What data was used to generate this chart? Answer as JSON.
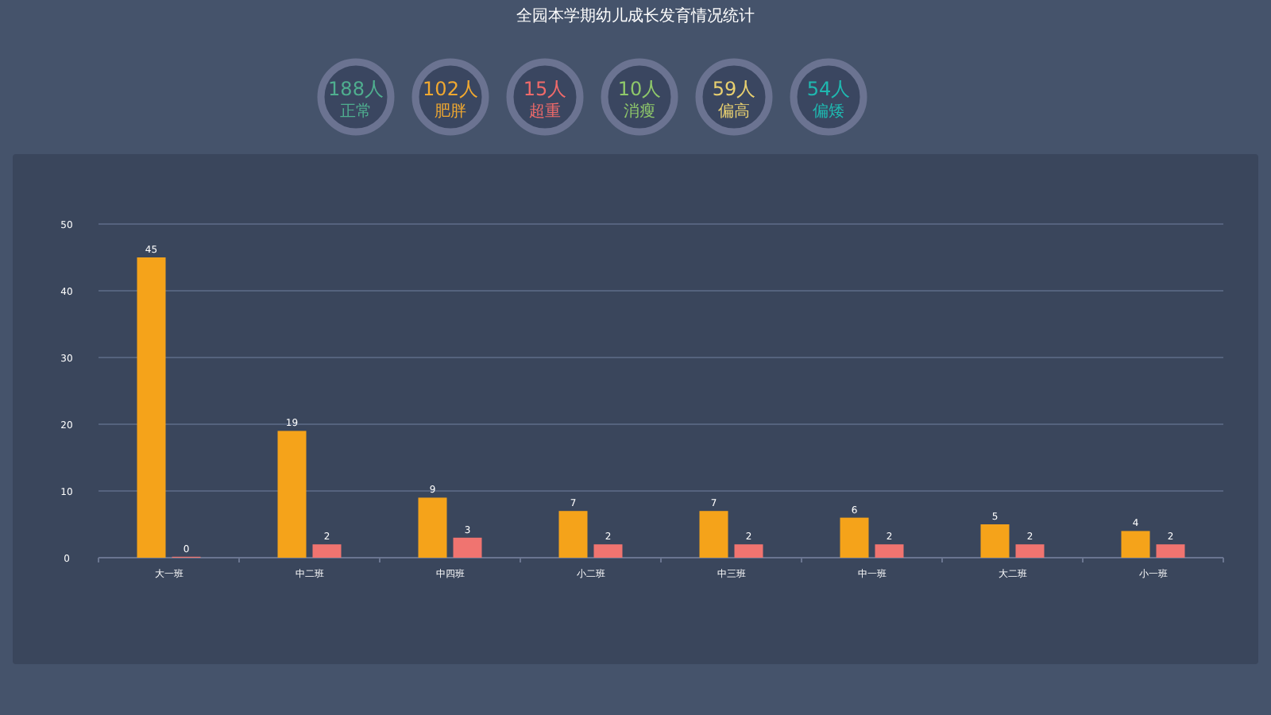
{
  "chart_data": [
    {
      "type": "other",
      "title": "全园本学期幼儿成长发育情况统计",
      "annotations": [
        "188人",
        "正常",
        "102人",
        "肥胖",
        "15人",
        "超重",
        "10人",
        "消瘦",
        "59人",
        "偏高",
        "54人",
        "偏矮"
      ]
    },
    {
      "type": "bar",
      "categories": [
        "大一班",
        "中二班",
        "中四班",
        "小二班",
        "中三班",
        "中一班",
        "大二班",
        "小一班"
      ],
      "series": [
        {
          "color": "#f5a31a",
          "values": [
            45,
            19,
            9,
            7,
            7,
            6,
            5,
            4
          ]
        },
        {
          "color": "#f07470",
          "values": [
            0,
            2,
            3,
            2,
            2,
            2,
            2,
            2
          ]
        }
      ],
      "ylim": [
        0,
        50
      ],
      "yticks": [
        0,
        10,
        20,
        30,
        40,
        50
      ],
      "grid": "y",
      "data_labels": true
    }
  ]
}
